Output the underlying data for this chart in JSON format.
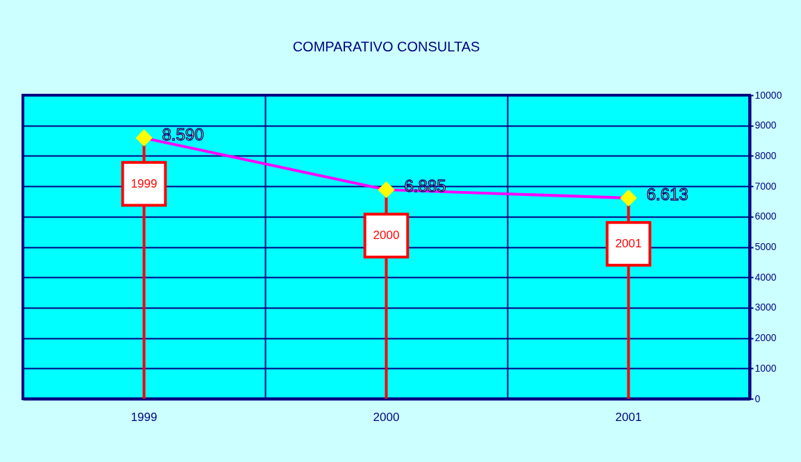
{
  "chart_data": {
    "type": "line",
    "title": "COMPARATIVO CONSULTAS",
    "categories": [
      "1999",
      "2000",
      "2001"
    ],
    "series": [
      {
        "type": "lollipop",
        "color": "#ff0000",
        "marker": "diamond",
        "colors": [
          "#ffff00",
          "#ffff00",
          "#ffff00"
        ],
        "values": [
          8590,
          6885,
          6613
        ]
      },
      {
        "color": "#ff00ff",
        "values": [
          8590,
          6885,
          6613
        ],
        "value_labels": [
          "8.590",
          "6.885",
          "6.613"
        ]
      }
    ],
    "ylim": [
      0,
      10000
    ],
    "yticks": [
      0,
      1000,
      2000,
      3000,
      4000,
      5000,
      6000,
      7000,
      8000,
      9000,
      10000
    ],
    "grid": true,
    "annotations": [
      "1999",
      "2000",
      "2001"
    ]
  }
}
